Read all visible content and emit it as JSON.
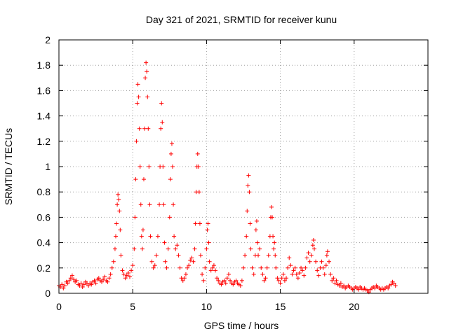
{
  "chart_data": {
    "type": "scatter",
    "title": "Day 321 of 2021, SRMTID for receiver kunu",
    "xlabel": "GPS time / hours",
    "ylabel": "SRMTID / TECUs",
    "xlim": [
      0,
      25
    ],
    "ylim": [
      0,
      2
    ],
    "xticks": [
      0,
      5,
      10,
      15,
      20
    ],
    "yticks": [
      0,
      0.2,
      0.4,
      0.6,
      0.8,
      1,
      1.2,
      1.4,
      1.6,
      1.8,
      2
    ],
    "xtick_labels": [
      "0",
      "5",
      "10",
      "15",
      "20"
    ],
    "ytick_labels": [
      "0",
      "0.2",
      "0.4",
      "0.6",
      "0.8",
      "1",
      "1.2",
      "1.4",
      "1.6",
      "1.8",
      "2"
    ],
    "grid": true,
    "marker": "+",
    "color": "#ff0000",
    "series": [
      {
        "name": "SRMTID",
        "points": [
          [
            0.0,
            0.06
          ],
          [
            0.1,
            0.05
          ],
          [
            0.2,
            0.07
          ],
          [
            0.3,
            0.04
          ],
          [
            0.4,
            0.06
          ],
          [
            0.5,
            0.09
          ],
          [
            0.6,
            0.08
          ],
          [
            0.7,
            0.1
          ],
          [
            0.8,
            0.12
          ],
          [
            0.9,
            0.14
          ],
          [
            1.0,
            0.11
          ],
          [
            1.1,
            0.09
          ],
          [
            1.2,
            0.1
          ],
          [
            1.3,
            0.07
          ],
          [
            1.4,
            0.06
          ],
          [
            1.5,
            0.08
          ],
          [
            1.6,
            0.05
          ],
          [
            1.7,
            0.07
          ],
          [
            1.8,
            0.09
          ],
          [
            1.9,
            0.08
          ],
          [
            2.0,
            0.06
          ],
          [
            2.1,
            0.08
          ],
          [
            2.2,
            0.07
          ],
          [
            2.3,
            0.09
          ],
          [
            2.4,
            0.1
          ],
          [
            2.5,
            0.08
          ],
          [
            2.6,
            0.11
          ],
          [
            2.7,
            0.12
          ],
          [
            2.8,
            0.1
          ],
          [
            2.9,
            0.09
          ],
          [
            3.0,
            0.11
          ],
          [
            3.1,
            0.13
          ],
          [
            3.2,
            0.1
          ],
          [
            3.3,
            0.09
          ],
          [
            3.4,
            0.12
          ],
          [
            3.5,
            0.15
          ],
          [
            3.6,
            0.2
          ],
          [
            3.7,
            0.25
          ],
          [
            3.8,
            0.35
          ],
          [
            3.85,
            0.45
          ],
          [
            3.9,
            0.55
          ],
          [
            3.95,
            0.7
          ],
          [
            4.0,
            0.78
          ],
          [
            4.05,
            0.74
          ],
          [
            4.1,
            0.65
          ],
          [
            4.15,
            0.5
          ],
          [
            4.2,
            0.3
          ],
          [
            4.3,
            0.18
          ],
          [
            4.4,
            0.15
          ],
          [
            4.5,
            0.12
          ],
          [
            4.6,
            0.14
          ],
          [
            4.7,
            0.16
          ],
          [
            4.8,
            0.13
          ],
          [
            4.9,
            0.18
          ],
          [
            5.0,
            0.22
          ],
          [
            5.1,
            0.35
          ],
          [
            5.15,
            0.6
          ],
          [
            5.2,
            0.9
          ],
          [
            5.25,
            1.2
          ],
          [
            5.3,
            1.5
          ],
          [
            5.35,
            1.65
          ],
          [
            5.4,
            1.55
          ],
          [
            5.45,
            1.3
          ],
          [
            5.5,
            1.0
          ],
          [
            5.55,
            0.7
          ],
          [
            5.6,
            0.45
          ],
          [
            5.65,
            0.35
          ],
          [
            5.7,
            0.5
          ],
          [
            5.75,
            0.9
          ],
          [
            5.8,
            1.3
          ],
          [
            5.85,
            1.7
          ],
          [
            5.9,
            1.82
          ],
          [
            5.95,
            1.75
          ],
          [
            6.0,
            1.55
          ],
          [
            6.05,
            1.3
          ],
          [
            6.1,
            1.0
          ],
          [
            6.15,
            0.7
          ],
          [
            6.2,
            0.45
          ],
          [
            6.3,
            0.25
          ],
          [
            6.4,
            0.2
          ],
          [
            6.5,
            0.22
          ],
          [
            6.6,
            0.3
          ],
          [
            6.7,
            0.45
          ],
          [
            6.8,
            0.7
          ],
          [
            6.85,
            1.0
          ],
          [
            6.9,
            1.3
          ],
          [
            6.95,
            1.5
          ],
          [
            7.0,
            1.35
          ],
          [
            7.05,
            1.0
          ],
          [
            7.1,
            0.7
          ],
          [
            7.15,
            0.4
          ],
          [
            7.2,
            0.25
          ],
          [
            7.3,
            0.2
          ],
          [
            7.4,
            0.35
          ],
          [
            7.5,
            0.6
          ],
          [
            7.55,
            0.9
          ],
          [
            7.6,
            1.1
          ],
          [
            7.65,
            1.18
          ],
          [
            7.7,
            1.0
          ],
          [
            7.75,
            0.7
          ],
          [
            7.8,
            0.45
          ],
          [
            7.9,
            0.35
          ],
          [
            8.0,
            0.38
          ],
          [
            8.1,
            0.3
          ],
          [
            8.2,
            0.2
          ],
          [
            8.3,
            0.12
          ],
          [
            8.4,
            0.1
          ],
          [
            8.5,
            0.12
          ],
          [
            8.6,
            0.15
          ],
          [
            8.7,
            0.2
          ],
          [
            8.8,
            0.22
          ],
          [
            8.9,
            0.26
          ],
          [
            9.0,
            0.28
          ],
          [
            9.1,
            0.25
          ],
          [
            9.2,
            0.35
          ],
          [
            9.25,
            0.55
          ],
          [
            9.3,
            0.8
          ],
          [
            9.35,
            1.0
          ],
          [
            9.4,
            1.1
          ],
          [
            9.45,
            1.0
          ],
          [
            9.5,
            0.8
          ],
          [
            9.55,
            0.55
          ],
          [
            9.6,
            0.3
          ],
          [
            9.7,
            0.15
          ],
          [
            9.8,
            0.1
          ],
          [
            9.9,
            0.2
          ],
          [
            10.0,
            0.35
          ],
          [
            10.05,
            0.5
          ],
          [
            10.1,
            0.55
          ],
          [
            10.15,
            0.4
          ],
          [
            10.2,
            0.25
          ],
          [
            10.3,
            0.18
          ],
          [
            10.4,
            0.2
          ],
          [
            10.5,
            0.22
          ],
          [
            10.6,
            0.18
          ],
          [
            10.7,
            0.12
          ],
          [
            10.8,
            0.1
          ],
          [
            10.9,
            0.08
          ],
          [
            11.0,
            0.07
          ],
          [
            11.1,
            0.09
          ],
          [
            11.2,
            0.1
          ],
          [
            11.3,
            0.08
          ],
          [
            11.4,
            0.12
          ],
          [
            11.5,
            0.15
          ],
          [
            11.6,
            0.1
          ],
          [
            11.7,
            0.08
          ],
          [
            11.8,
            0.07
          ],
          [
            11.9,
            0.09
          ],
          [
            12.0,
            0.1
          ],
          [
            12.1,
            0.08
          ],
          [
            12.2,
            0.07
          ],
          [
            12.3,
            0.06
          ],
          [
            12.4,
            0.1
          ],
          [
            12.5,
            0.2
          ],
          [
            12.6,
            0.3
          ],
          [
            12.7,
            0.45
          ],
          [
            12.75,
            0.65
          ],
          [
            12.8,
            0.85
          ],
          [
            12.85,
            0.93
          ],
          [
            12.9,
            0.8
          ],
          [
            12.95,
            0.55
          ],
          [
            13.0,
            0.35
          ],
          [
            13.1,
            0.2
          ],
          [
            13.2,
            0.15
          ],
          [
            13.3,
            0.3
          ],
          [
            13.35,
            0.5
          ],
          [
            13.4,
            0.57
          ],
          [
            13.45,
            0.4
          ],
          [
            13.5,
            0.3
          ],
          [
            13.6,
            0.35
          ],
          [
            13.7,
            0.2
          ],
          [
            13.8,
            0.15
          ],
          [
            13.9,
            0.1
          ],
          [
            14.0,
            0.12
          ],
          [
            14.1,
            0.2
          ],
          [
            14.2,
            0.3
          ],
          [
            14.3,
            0.45
          ],
          [
            14.35,
            0.6
          ],
          [
            14.4,
            0.68
          ],
          [
            14.45,
            0.6
          ],
          [
            14.5,
            0.45
          ],
          [
            14.55,
            0.35
          ],
          [
            14.6,
            0.4
          ],
          [
            14.65,
            0.3
          ],
          [
            14.7,
            0.2
          ],
          [
            14.8,
            0.12
          ],
          [
            14.9,
            0.1
          ],
          [
            15.0,
            0.08
          ],
          [
            15.1,
            0.12
          ],
          [
            15.2,
            0.15
          ],
          [
            15.3,
            0.1
          ],
          [
            15.4,
            0.12
          ],
          [
            15.5,
            0.2
          ],
          [
            15.6,
            0.28
          ],
          [
            15.7,
            0.22
          ],
          [
            15.8,
            0.15
          ],
          [
            15.9,
            0.18
          ],
          [
            16.0,
            0.2
          ],
          [
            16.1,
            0.15
          ],
          [
            16.2,
            0.12
          ],
          [
            16.3,
            0.16
          ],
          [
            16.4,
            0.2
          ],
          [
            16.5,
            0.18
          ],
          [
            16.6,
            0.14
          ],
          [
            16.7,
            0.2
          ],
          [
            16.8,
            0.28
          ],
          [
            16.9,
            0.32
          ],
          [
            17.0,
            0.25
          ],
          [
            17.1,
            0.3
          ],
          [
            17.2,
            0.38
          ],
          [
            17.25,
            0.42
          ],
          [
            17.3,
            0.35
          ],
          [
            17.4,
            0.25
          ],
          [
            17.5,
            0.18
          ],
          [
            17.6,
            0.14
          ],
          [
            17.7,
            0.2
          ],
          [
            17.8,
            0.25
          ],
          [
            17.9,
            0.2
          ],
          [
            18.0,
            0.15
          ],
          [
            18.1,
            0.22
          ],
          [
            18.15,
            0.3
          ],
          [
            18.2,
            0.33
          ],
          [
            18.3,
            0.25
          ],
          [
            18.4,
            0.15
          ],
          [
            18.5,
            0.1
          ],
          [
            18.6,
            0.12
          ],
          [
            18.7,
            0.08
          ],
          [
            18.8,
            0.1
          ],
          [
            18.9,
            0.07
          ],
          [
            19.0,
            0.06
          ],
          [
            19.1,
            0.08
          ],
          [
            19.2,
            0.05
          ],
          [
            19.3,
            0.06
          ],
          [
            19.4,
            0.04
          ],
          [
            19.5,
            0.05
          ],
          [
            19.6,
            0.06
          ],
          [
            19.7,
            0.05
          ],
          [
            19.8,
            0.04
          ],
          [
            19.9,
            0.03
          ],
          [
            20.0,
            0.04
          ],
          [
            20.1,
            0.05
          ],
          [
            20.2,
            0.04
          ],
          [
            20.3,
            0.03
          ],
          [
            20.4,
            0.05
          ],
          [
            20.5,
            0.04
          ],
          [
            20.6,
            0.03
          ],
          [
            20.7,
            0.04
          ],
          [
            20.8,
            0.03
          ],
          [
            20.9,
            0.02
          ],
          [
            21.0,
            0.01
          ],
          [
            21.1,
            0.03
          ],
          [
            21.2,
            0.04
          ],
          [
            21.3,
            0.05
          ],
          [
            21.4,
            0.04
          ],
          [
            21.5,
            0.06
          ],
          [
            21.6,
            0.05
          ],
          [
            21.7,
            0.04
          ],
          [
            21.8,
            0.03
          ],
          [
            21.9,
            0.04
          ],
          [
            22.0,
            0.03
          ],
          [
            22.1,
            0.04
          ],
          [
            22.2,
            0.05
          ],
          [
            22.3,
            0.04
          ],
          [
            22.4,
            0.06
          ],
          [
            22.5,
            0.07
          ],
          [
            22.6,
            0.09
          ],
          [
            22.7,
            0.08
          ],
          [
            22.8,
            0.06
          ]
        ]
      }
    ]
  }
}
